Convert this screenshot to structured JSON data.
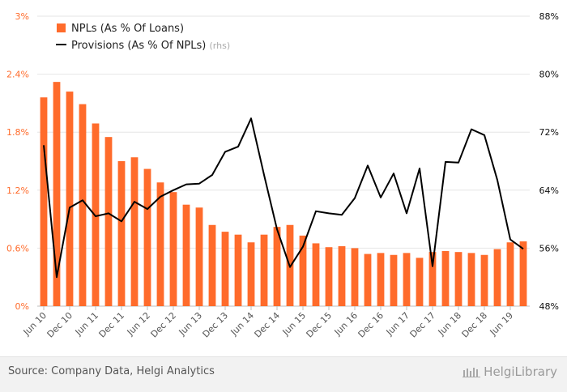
{
  "chart_data": {
    "type": "bar",
    "title": "",
    "xlabel": "",
    "ylabel": "",
    "categories": [
      "Jun 10",
      "",
      "Dec 10",
      "",
      "Jun 11",
      "",
      "Dec 11",
      "",
      "Jun 12",
      "",
      "Dec 12",
      "",
      "Jun 13",
      "",
      "Dec 13",
      "",
      "Jun 14",
      "",
      "Dec 14",
      "",
      "Jun 15",
      "",
      "Dec 15",
      "",
      "Jun 16",
      "",
      "Dec 16",
      "",
      "Jun 17",
      "",
      "Dec 17",
      "",
      "Jun 18",
      "",
      "Dec 18",
      "",
      "Jun 19",
      ""
    ],
    "ylim": [
      0,
      3
    ],
    "y2lim": [
      48,
      88
    ],
    "yticks": [
      "0%",
      "0.6%",
      "1.2%",
      "1.8%",
      "2.4%",
      "3%"
    ],
    "y2ticks": [
      "48%",
      "56%",
      "64%",
      "72%",
      "80%",
      "88%"
    ],
    "grid": true,
    "legend_position": "top-left",
    "series": [
      {
        "name": "NPLs (As % Of Loans)",
        "type": "bar",
        "axis": "left",
        "color": "#ff6b2b",
        "values": [
          2.16,
          2.32,
          2.22,
          2.09,
          1.89,
          1.75,
          1.5,
          1.54,
          1.42,
          1.28,
          1.18,
          1.05,
          1.02,
          0.84,
          0.77,
          0.74,
          0.66,
          0.74,
          0.82,
          0.84,
          0.73,
          0.65,
          0.61,
          0.62,
          0.6,
          0.54,
          0.55,
          0.53,
          0.55,
          0.5,
          0.56,
          0.57,
          0.56,
          0.55,
          0.53,
          0.59,
          0.66,
          0.67
        ]
      },
      {
        "name": "Provisions (As % Of NPLs)",
        "name_suffix": "(rhs)",
        "type": "line",
        "axis": "right",
        "color": "#000000",
        "values": [
          70.2,
          52.0,
          61.6,
          62.6,
          60.4,
          60.8,
          59.7,
          62.4,
          61.4,
          63.1,
          64.0,
          64.8,
          64.9,
          66.1,
          69.3,
          70.0,
          73.9,
          66.1,
          58.6,
          53.4,
          56.2,
          61.1,
          60.8,
          60.6,
          62.9,
          67.4,
          63.0,
          66.3,
          60.8,
          67.0,
          53.5,
          67.9,
          67.8,
          72.4,
          71.6,
          65.4,
          57.2,
          55.9
        ]
      }
    ]
  },
  "footer": {
    "source": "Source: Company Data, Helgi Analytics",
    "brand": "HelgiLibrary"
  }
}
